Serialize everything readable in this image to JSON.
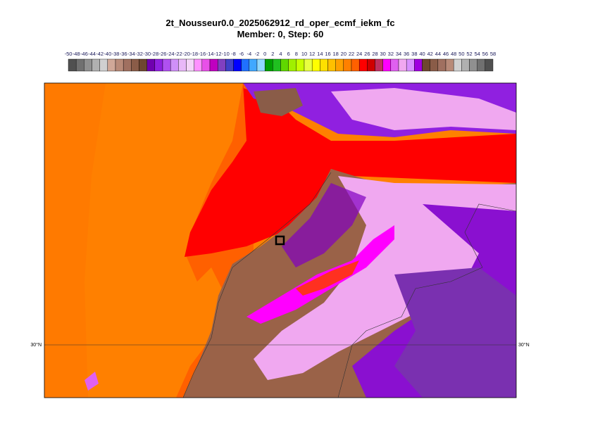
{
  "title": "2t_Nousseur0.0_2025062912_rd_oper_ecmf_iekm_fc",
  "subtitle": "Member: 0, Step: 60",
  "colorbar": {
    "labels": [
      -50,
      -48,
      -46,
      -44,
      -42,
      -40,
      -38,
      -36,
      -34,
      -32,
      -30,
      -28,
      -26,
      -24,
      -22,
      -20,
      -18,
      -16,
      -14,
      -12,
      -10,
      -8,
      -6,
      -4,
      -2,
      0,
      2,
      4,
      6,
      8,
      10,
      12,
      14,
      16,
      18,
      20,
      22,
      24,
      26,
      28,
      30,
      32,
      34,
      36,
      38,
      40,
      42,
      44,
      46,
      48,
      50,
      52,
      54,
      56,
      58
    ],
    "colors": [
      "#505050",
      "#707070",
      "#909090",
      "#b0b0b0",
      "#d0d0d0",
      "#d0a898",
      "#b88a78",
      "#a07060",
      "#8a5c48",
      "#6e4630",
      "#7000b0",
      "#9020e0",
      "#b050f0",
      "#d090f8",
      "#e8b8f8",
      "#f4d4f8",
      "#ff90ff",
      "#e850e8",
      "#c000c0",
      "#8040c0",
      "#4040c8",
      "#0000ff",
      "#2070ff",
      "#40a8ff",
      "#90d8ff",
      "#00a000",
      "#20c020",
      "#60d800",
      "#a0f000",
      "#c8ff00",
      "#e8ff40",
      "#ffff00",
      "#ffe000",
      "#ffc000",
      "#ffa000",
      "#ff8000",
      "#ff6000",
      "#ff0000",
      "#d00000",
      "#c03060",
      "#ff00ff",
      "#e060f0",
      "#f0a8f0",
      "#d890ff",
      "#a000e0",
      "#6e4630",
      "#8a5c48",
      "#a07060",
      "#b88a78",
      "#d0d0d0",
      "#b0b0b0",
      "#909090",
      "#707070",
      "#505050"
    ]
  },
  "map": {
    "lat_labels": [
      "30°N",
      "30°N"
    ]
  }
}
